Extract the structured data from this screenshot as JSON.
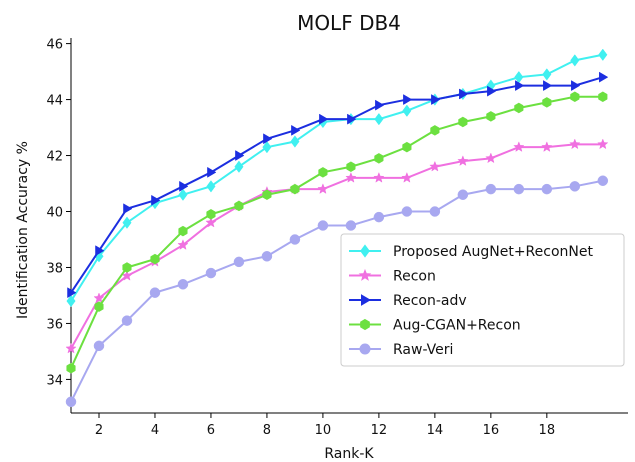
{
  "chart_data": {
    "type": "line",
    "title": "MOLF DB4",
    "xlabel": "Rank-K",
    "ylabel": "Identification Accuracy %",
    "xlim": [
      1,
      20.9
    ],
    "ylim": [
      32.8,
      46.2
    ],
    "xticks": [
      2,
      4,
      6,
      8,
      10,
      12,
      14,
      16,
      18
    ],
    "yticks": [
      34,
      36,
      38,
      40,
      42,
      44,
      46
    ],
    "legend_position": "center-right",
    "x": [
      1,
      2,
      3,
      4,
      5,
      6,
      7,
      8,
      9,
      10,
      11,
      12,
      13,
      14,
      15,
      16,
      17,
      18,
      19,
      20
    ],
    "series": [
      {
        "name": "Proposed AugNet+ReconNet",
        "color": "#40f0f0",
        "marker": "diamond",
        "values": [
          36.8,
          38.4,
          39.6,
          40.3,
          40.6,
          40.9,
          41.6,
          42.3,
          42.5,
          43.2,
          43.3,
          43.3,
          43.6,
          44.0,
          44.2,
          44.5,
          44.8,
          44.9,
          45.4,
          45.6
        ]
      },
      {
        "name": "Recon",
        "color": "#f070e0",
        "marker": "star",
        "values": [
          35.1,
          36.9,
          37.7,
          38.2,
          38.8,
          39.6,
          40.2,
          40.7,
          40.8,
          40.8,
          41.2,
          41.2,
          41.2,
          41.6,
          41.8,
          41.9,
          42.3,
          42.3,
          42.4,
          42.4
        ]
      },
      {
        "name": "Recon-adv",
        "color": "#1c2ee0",
        "marker": "triangle-right",
        "values": [
          37.1,
          38.6,
          40.1,
          40.4,
          40.9,
          41.4,
          42.0,
          42.6,
          42.9,
          43.3,
          43.3,
          43.8,
          44.0,
          44.0,
          44.2,
          44.3,
          44.5,
          44.5,
          44.5,
          44.8
        ]
      },
      {
        "name": "Aug-CGAN+Recon",
        "color": "#6ce040",
        "marker": "hexagon",
        "values": [
          34.4,
          36.6,
          38.0,
          38.3,
          39.3,
          39.9,
          40.2,
          40.6,
          40.8,
          41.4,
          41.6,
          41.9,
          42.3,
          42.9,
          43.2,
          43.4,
          43.7,
          43.9,
          44.1,
          44.1
        ]
      },
      {
        "name": "Raw-Veri",
        "color": "#a8a8f0",
        "marker": "circle",
        "values": [
          33.2,
          35.2,
          36.1,
          37.1,
          37.4,
          37.8,
          38.2,
          38.4,
          39.0,
          39.5,
          39.5,
          39.8,
          40.0,
          40.0,
          40.6,
          40.8,
          40.8,
          40.8,
          40.9,
          41.1
        ]
      }
    ]
  }
}
